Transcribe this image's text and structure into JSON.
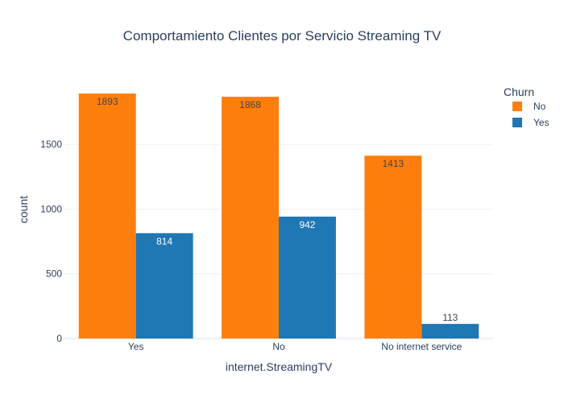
{
  "chart_data": {
    "type": "bar",
    "title": "Comportamiento Clientes por Servicio Streaming TV",
    "xlabel": "internet.StreamingTV",
    "ylabel": "count",
    "categories": [
      "Yes",
      "No",
      "No internet service"
    ],
    "series": [
      {
        "name": "No",
        "values": [
          1893,
          1868,
          1413
        ],
        "color": "#ff7f0e"
      },
      {
        "name": "Yes",
        "values": [
          814,
          942,
          113
        ],
        "color": "#1f77b4"
      }
    ],
    "ylim": [
      0,
      1993
    ],
    "yticks": [
      0,
      500,
      1000,
      1500
    ],
    "grid": true,
    "legend": {
      "title": "Churn",
      "position": "top-right"
    }
  }
}
